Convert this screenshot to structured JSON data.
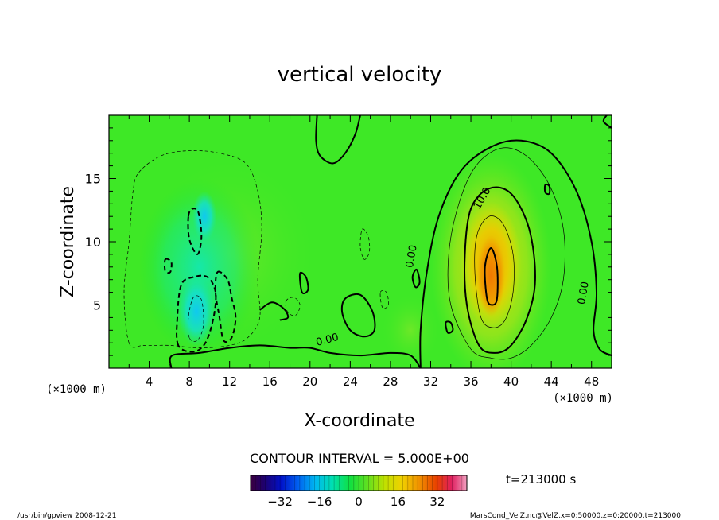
{
  "chart_data": {
    "type": "heatmap",
    "title": "vertical velocity",
    "xlabel": "X-coordinate",
    "ylabel": "Z-coordinate",
    "xunit": "(×1000 m)",
    "yunit": "(×1000 m)",
    "xlim": [
      0,
      50
    ],
    "ylim": [
      0,
      20
    ],
    "xticks": [
      4,
      8,
      12,
      16,
      20,
      24,
      28,
      32,
      36,
      40,
      44,
      48
    ],
    "yticks": [
      5,
      10,
      15
    ],
    "contour_interval_text": "CONTOUR INTERVAL = 5.000E+00",
    "contour_labels": [
      {
        "text": "10.0",
        "x": 37.4,
        "y": 13.3
      },
      {
        "text": "0.00",
        "x": 30.4,
        "y": 8.8
      },
      {
        "text": "0.00",
        "x": 21.8,
        "y": 2.0
      },
      {
        "text": "0.00",
        "x": 47.5,
        "y": 5.9
      }
    ],
    "features": [
      {
        "kind": "updraft",
        "x": 38,
        "z": 7.5,
        "w": 33,
        "rx": 2.4,
        "rz": 4.4
      },
      {
        "kind": "updraft",
        "x": 37.5,
        "z": 8,
        "w": 8,
        "rx": 5.5,
        "rz": 8
      },
      {
        "kind": "downdraft",
        "x": 8.7,
        "z": 4.5,
        "w": -12,
        "rx": 1.6,
        "rz": 2.4
      },
      {
        "kind": "downdraft",
        "x": 9,
        "z": 8,
        "w": -7,
        "rx": 6,
        "rz": 7
      }
    ],
    "colorbar": {
      "ticks": [
        -32,
        -16,
        0,
        16,
        32
      ],
      "min": -44,
      "max": 44,
      "colormap": "rainbow"
    },
    "time_label": "t=213000 s"
  },
  "footer": {
    "left": "/usr/bin/gpview   2008-12-21",
    "right": "MarsCond_VelZ.nc@VelZ,x=0:50000,z=0:20000,t=213000"
  }
}
